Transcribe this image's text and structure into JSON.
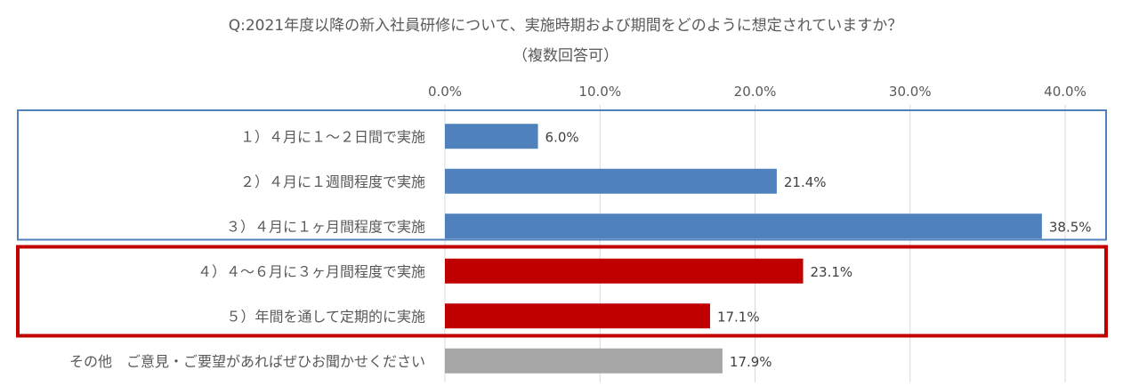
{
  "chart_data": {
    "type": "bar",
    "orientation": "horizontal",
    "title": "Q:2021年度以降の新入社員研修について、実施時期および期間をどのように想定されていますか？",
    "subtitle": "（複数回答可）",
    "categories": [
      "１）４月に１～２日間で実施",
      "２）４月に１週間程度で実施",
      "３）４月に１ヶ月間程度で実施",
      "４）４～６月に３ヶ月間程度で実施",
      "５）年間を通して定期的に実施",
      "その他　ご意見・ご要望があればぜひお聞かせください"
    ],
    "values": [
      6.0,
      21.4,
      38.5,
      23.1,
      17.1,
      17.9
    ],
    "data_labels": [
      "6.0%",
      "21.4%",
      "38.5%",
      "23.1%",
      "17.1%",
      "17.9%"
    ],
    "bar_colors": [
      "#4f81bd",
      "#4f81bd",
      "#4f81bd",
      "#c00000",
      "#c00000",
      "#a6a6a6"
    ],
    "x_ticks": [
      "0.0%",
      "10.0%",
      "20.0%",
      "30.0%",
      "40.0%"
    ],
    "xlim": [
      0,
      40
    ],
    "axis_position": "top",
    "grid": true,
    "groups": [
      {
        "categories": [
          0,
          1,
          2
        ],
        "color": "#4f81bd"
      },
      {
        "categories": [
          3,
          4
        ],
        "color": "#c00000"
      }
    ]
  }
}
